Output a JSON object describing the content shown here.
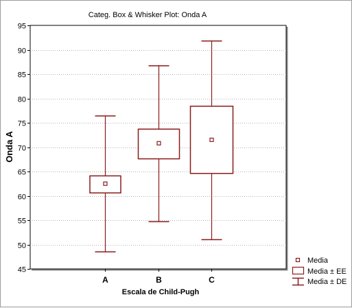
{
  "chart_data": {
    "type": "boxplot",
    "title": "Categ. Box & Whisker Plot: Onda A",
    "xlabel": "Escala de Child-Pugh",
    "ylabel": "Onda A",
    "ylim": [
      45,
      95
    ],
    "yticks": [
      45,
      50,
      55,
      60,
      65,
      70,
      75,
      80,
      85,
      90,
      95
    ],
    "ytick_labels": [
      "45",
      "50",
      "55",
      "60",
      "65",
      "70",
      "75",
      "80",
      "85",
      "90",
      "95"
    ],
    "grid": true,
    "legend_position": "bottom-right",
    "color": "#8b1a1a",
    "categories": [
      "A",
      "B",
      "C"
    ],
    "series": [
      {
        "category": "A",
        "mean": 62.5,
        "ee_low": 60.6,
        "ee_high": 64.1,
        "de_low": 48.5,
        "de_high": 76.4
      },
      {
        "category": "B",
        "mean": 70.8,
        "ee_low": 67.6,
        "ee_high": 73.7,
        "de_low": 54.7,
        "de_high": 86.7
      },
      {
        "category": "C",
        "mean": 71.5,
        "ee_low": 64.6,
        "ee_high": 78.4,
        "de_low": 51.0,
        "de_high": 91.8
      }
    ],
    "legend": [
      {
        "key": "mean",
        "label": "Media"
      },
      {
        "key": "ee",
        "label": "Media ± EE"
      },
      {
        "key": "de",
        "label": "Media ± DE"
      }
    ]
  }
}
